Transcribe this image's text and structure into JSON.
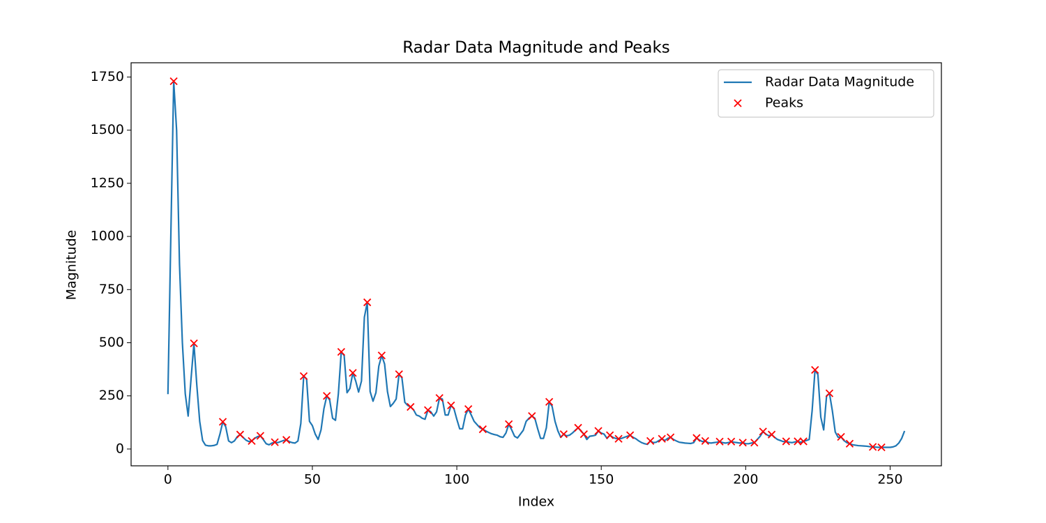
{
  "chart_data": {
    "type": "line",
    "title": "Radar Data Magnitude and Peaks",
    "xlabel": "Index",
    "ylabel": "Magnitude",
    "x": [
      0,
      1,
      2,
      3,
      4,
      5,
      6,
      7,
      8,
      9,
      10,
      11,
      12,
      13,
      14,
      15,
      16,
      17,
      18,
      19,
      20,
      21,
      22,
      23,
      24,
      25,
      26,
      27,
      28,
      29,
      30,
      31,
      32,
      33,
      34,
      35,
      36,
      37,
      38,
      39,
      40,
      41,
      42,
      43,
      44,
      45,
      46,
      47,
      48,
      49,
      50,
      51,
      52,
      53,
      54,
      55,
      56,
      57,
      58,
      59,
      60,
      61,
      62,
      63,
      64,
      65,
      66,
      67,
      68,
      69,
      70,
      71,
      72,
      73,
      74,
      75,
      76,
      77,
      78,
      79,
      80,
      81,
      82,
      83,
      84,
      85,
      86,
      87,
      88,
      89,
      90,
      91,
      92,
      93,
      94,
      95,
      96,
      97,
      98,
      99,
      100,
      101,
      102,
      103,
      104,
      105,
      106,
      107,
      108,
      109,
      110,
      111,
      112,
      113,
      114,
      115,
      116,
      117,
      118,
      119,
      120,
      121,
      122,
      123,
      124,
      125,
      126,
      127,
      128,
      129,
      130,
      131,
      132,
      133,
      134,
      135,
      136,
      137,
      138,
      139,
      140,
      141,
      142,
      143,
      144,
      145,
      146,
      147,
      148,
      149,
      150,
      151,
      152,
      153,
      154,
      155,
      156,
      157,
      158,
      159,
      160,
      161,
      162,
      163,
      164,
      165,
      166,
      167,
      168,
      169,
      170,
      171,
      172,
      173,
      174,
      175,
      176,
      177,
      178,
      179,
      180,
      181,
      182,
      183,
      184,
      185,
      186,
      187,
      188,
      189,
      190,
      191,
      192,
      193,
      194,
      195,
      196,
      197,
      198,
      199,
      200,
      201,
      202,
      203,
      204,
      205,
      206,
      207,
      208,
      209,
      210,
      211,
      212,
      213,
      214,
      215,
      216,
      217,
      218,
      219,
      220,
      221,
      222,
      223,
      224,
      225,
      226,
      227,
      228,
      229,
      230,
      231,
      232,
      233,
      234,
      235,
      236,
      237,
      238,
      239,
      240,
      241,
      242,
      243,
      244,
      245,
      246,
      247,
      248,
      249,
      250,
      251,
      252,
      253,
      254,
      255
    ],
    "series": [
      {
        "name": "Radar Data Magnitude",
        "color": "#1f77b4",
        "style": "line",
        "values": [
          258,
          1000,
          1730,
          1500,
          870,
          500,
          260,
          155,
          330,
          497,
          300,
          130,
          40,
          18,
          15,
          15,
          17,
          22,
          70,
          128,
          105,
          38,
          30,
          38,
          58,
          68,
          55,
          42,
          35,
          38,
          50,
          58,
          62,
          45,
          25,
          20,
          28,
          32,
          30,
          35,
          40,
          43,
          35,
          30,
          28,
          38,
          120,
          343,
          330,
          130,
          110,
          70,
          45,
          90,
          190,
          250,
          230,
          145,
          135,
          260,
          457,
          440,
          265,
          285,
          358,
          320,
          268,
          320,
          620,
          690,
          270,
          225,
          265,
          390,
          440,
          400,
          270,
          200,
          215,
          235,
          352,
          335,
          220,
          205,
          198,
          185,
          160,
          155,
          145,
          140,
          183,
          175,
          155,
          175,
          240,
          235,
          160,
          160,
          205,
          190,
          140,
          95,
          95,
          160,
          188,
          160,
          130,
          115,
          100,
          93,
          85,
          78,
          72,
          68,
          65,
          58,
          55,
          75,
          117,
          90,
          60,
          52,
          70,
          88,
          130,
          145,
          155,
          145,
          95,
          50,
          50,
          100,
          222,
          200,
          130,
          85,
          55,
          70,
          62,
          65,
          75,
          88,
          100,
          85,
          70,
          45,
          60,
          62,
          65,
          85,
          75,
          70,
          50,
          65,
          55,
          50,
          48,
          50,
          55,
          60,
          65,
          55,
          48,
          38,
          30,
          25,
          22,
          38,
          30,
          32,
          40,
          48,
          40,
          50,
          55,
          45,
          38,
          32,
          30,
          28,
          27,
          26,
          30,
          52,
          42,
          35,
          38,
          30,
          28,
          30,
          32,
          35,
          30,
          28,
          30,
          35,
          32,
          30,
          28,
          30,
          25,
          25,
          28,
          30,
          45,
          60,
          82,
          70,
          62,
          68,
          55,
          45,
          40,
          35,
          36,
          32,
          30,
          33,
          36,
          32,
          36,
          40,
          45,
          180,
          372,
          350,
          150,
          90,
          250,
          262,
          180,
          80,
          55,
          57,
          40,
          30,
          25,
          20,
          18,
          16,
          15,
          14,
          13,
          11,
          10,
          9,
          8,
          8,
          8,
          8,
          8,
          10,
          15,
          28,
          50,
          85
        ]
      },
      {
        "name": "Peaks",
        "color": "#ff0000",
        "style": "marker",
        "x": [
          2,
          9,
          19,
          25,
          29,
          32,
          37,
          41,
          47,
          55,
          60,
          64,
          69,
          74,
          80,
          84,
          90,
          94,
          98,
          104,
          109,
          118,
          126,
          132,
          137,
          142,
          144,
          149,
          153,
          156,
          160,
          167,
          171,
          174,
          183,
          186,
          191,
          195,
          199,
          203,
          206,
          209,
          214,
          218,
          220,
          224,
          229,
          233,
          236,
          244,
          247
        ],
        "values": [
          1730,
          497,
          128,
          68,
          38,
          62,
          32,
          43,
          343,
          250,
          457,
          358,
          690,
          440,
          352,
          198,
          183,
          240,
          205,
          188,
          93,
          117,
          155,
          222,
          70,
          100,
          70,
          85,
          65,
          48,
          65,
          38,
          48,
          55,
          52,
          38,
          35,
          35,
          30,
          30,
          82,
          68,
          36,
          36,
          36,
          372,
          262,
          57,
          25,
          10,
          8
        ]
      }
    ],
    "xlim": [
      -12.75,
      267.75
    ],
    "ylim": [
      -79,
      1817
    ],
    "xticks": [
      0,
      50,
      100,
      150,
      200,
      250
    ],
    "yticks": [
      0,
      250,
      500,
      750,
      1000,
      1250,
      1500,
      1750
    ],
    "legend": "upper right"
  }
}
